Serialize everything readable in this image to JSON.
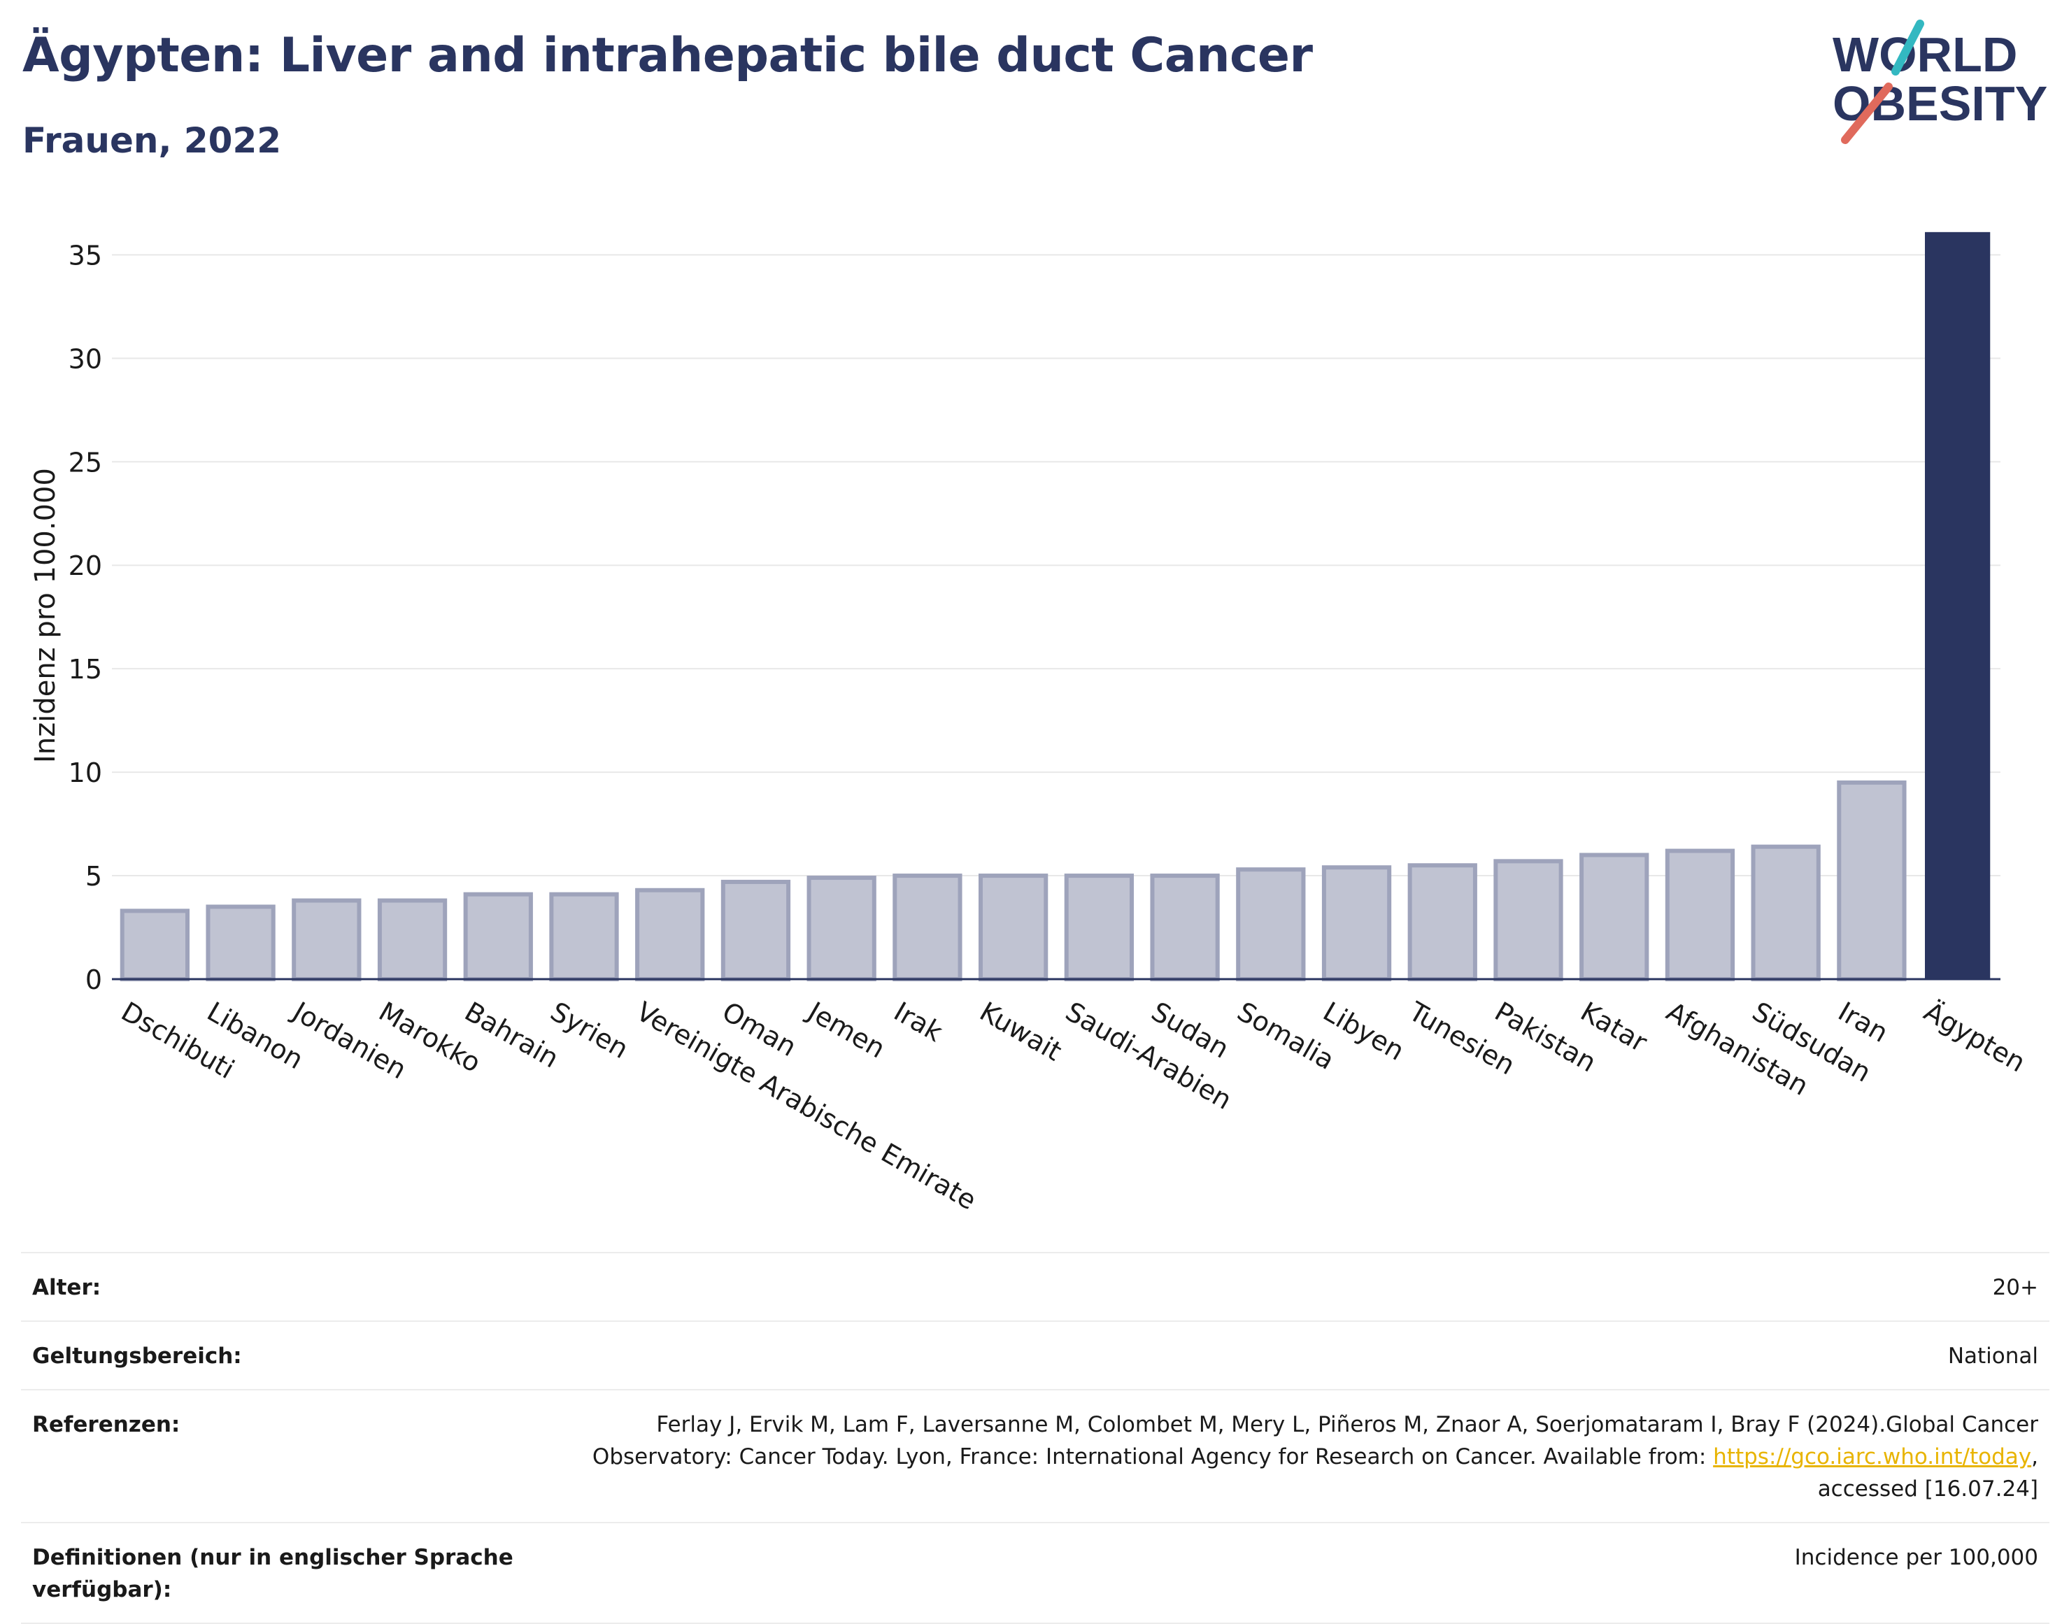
{
  "header": {
    "title": "Ägypten: Liver and intrahepatic bile duct Cancer",
    "subtitle": "Frauen, 2022"
  },
  "logo": {
    "line1": "WORLD",
    "line2": "OBESITY"
  },
  "colors": {
    "highlight": "#2a3560",
    "bar": "#c0c3d2",
    "bar_edge": "#9ea3bb",
    "logo_teal": "#33b8c1",
    "logo_red": "#e06a5c"
  },
  "chart_data": {
    "type": "bar",
    "ylabel": "Inzidenz pro 100.000",
    "xlabel": "",
    "ylim": [
      0,
      36.5
    ],
    "yticks": [
      0,
      5,
      10,
      15,
      20,
      25,
      30,
      35
    ],
    "grid": true,
    "highlight": "Ägypten",
    "categories": [
      "Dschibuti",
      "Libanon",
      "Jordanien",
      "Marokko",
      "Bahrain",
      "Syrien",
      "Vereinigte Arabische Emirate",
      "Oman",
      "Jemen",
      "Irak",
      "Kuwait",
      "Saudi-Arabien",
      "Sudan",
      "Somalia",
      "Libyen",
      "Tunesien",
      "Pakistan",
      "Katar",
      "Afghanistan",
      "Südsudan",
      "Iran",
      "Ägypten"
    ],
    "values": [
      3.3,
      3.5,
      3.8,
      3.8,
      4.1,
      4.1,
      4.3,
      4.7,
      4.9,
      5.0,
      5.0,
      5.0,
      5.0,
      5.3,
      5.4,
      5.5,
      5.7,
      6.0,
      6.2,
      6.4,
      9.5,
      36.1
    ]
  },
  "meta": {
    "age_label": "Alter:",
    "age_value": "20+",
    "scope_label": "Geltungsbereich:",
    "scope_value": "National",
    "ref_label": "Referenzen:",
    "ref_text_1": "Ferlay J, Ervik M, Lam F, Laversanne M, Colombet M, Mery L, Piñeros M, Znaor A, Soerjomataram I, Bray F (2024).Global Cancer Observatory: Cancer Today. Lyon, France: International Agency for Research on Cancer. Available from: ",
    "ref_link": "https://gco.iarc.who.int/today",
    "ref_text_2": ", accessed [16.07.24]",
    "def_label": "Definitionen (nur in englischer Sprache verfügbar):",
    "def_value": "Incidence per 100,000"
  }
}
